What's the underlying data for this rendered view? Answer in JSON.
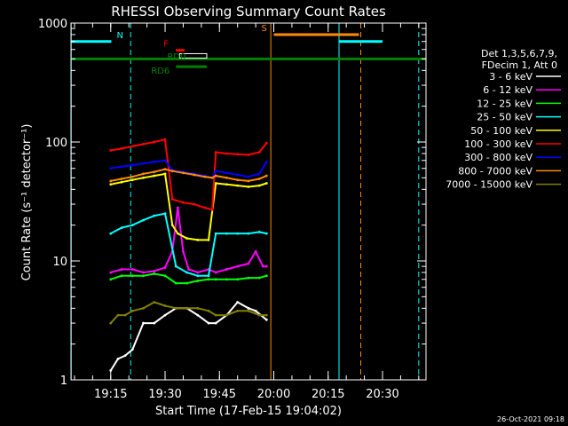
{
  "chart_data": {
    "type": "line",
    "title": "RHESSI Observing Summary Count Rates",
    "xlabel": "Start Time (17-Feb-15 19:04:02)",
    "ylabel": "Count Rate (s⁻¹ detector⁻¹)",
    "y_scale": "log",
    "ylim": [
      1,
      1000
    ],
    "xlim": [
      "19:04:02",
      "20:42:00"
    ],
    "x_ticks": [
      "19:15",
      "19:30",
      "19:45",
      "20:00",
      "20:15",
      "20:30"
    ],
    "y_ticks": [
      "1",
      "10",
      "100",
      "1000"
    ],
    "grid": false,
    "legend_position": "right",
    "legend_header": [
      "Det 1,3,5,6,7,9,",
      "FDecim 1, Att 0"
    ],
    "series": [
      {
        "name": "3 - 6 keV",
        "color": "#ffffff",
        "points": [
          [
            "19:15:00",
            1.2
          ],
          [
            "19:17:00",
            1.5
          ],
          [
            "19:19:00",
            1.6
          ],
          [
            "19:21:00",
            1.8
          ],
          [
            "19:24:00",
            3
          ],
          [
            "19:27:00",
            3
          ],
          [
            "19:30:00",
            3.5
          ],
          [
            "19:33:00",
            4
          ],
          [
            "19:36:00",
            4
          ],
          [
            "19:39:00",
            3.5
          ],
          [
            "19:42:00",
            3
          ],
          [
            "19:44:00",
            3
          ],
          [
            "19:47:00",
            3.5
          ],
          [
            "19:50:00",
            4.5
          ],
          [
            "19:53:00",
            4
          ],
          [
            "19:55:00",
            3.8
          ],
          [
            "19:58:00",
            3.2
          ]
        ]
      },
      {
        "name": "6 - 12 keV",
        "color": "#ff00ff",
        "points": [
          [
            "19:15:00",
            8
          ],
          [
            "19:18:00",
            8.5
          ],
          [
            "19:21:00",
            8.5
          ],
          [
            "19:24:00",
            8
          ],
          [
            "19:27:00",
            8.2
          ],
          [
            "19:30:00",
            8.8
          ],
          [
            "19:32:00",
            12
          ],
          [
            "19:33:30",
            28
          ],
          [
            "19:35:00",
            12
          ],
          [
            "19:36:30",
            8.5
          ],
          [
            "19:39:00",
            8
          ],
          [
            "19:42:00",
            8.5
          ],
          [
            "19:44:00",
            8
          ],
          [
            "19:47:00",
            8.5
          ],
          [
            "19:50:00",
            9
          ],
          [
            "19:53:00",
            9.5
          ],
          [
            "19:55:00",
            12
          ],
          [
            "19:57:00",
            9
          ],
          [
            "19:58:00",
            9
          ]
        ]
      },
      {
        "name": "12 - 25 keV",
        "color": "#00ff00",
        "points": [
          [
            "19:15:00",
            7
          ],
          [
            "19:18:00",
            7.5
          ],
          [
            "19:21:00",
            7.5
          ],
          [
            "19:24:00",
            7.5
          ],
          [
            "19:27:00",
            7.8
          ],
          [
            "19:30:00",
            7.5
          ],
          [
            "19:33:00",
            6.5
          ],
          [
            "19:36:00",
            6.5
          ],
          [
            "19:39:00",
            6.8
          ],
          [
            "19:42:00",
            7
          ],
          [
            "19:44:00",
            7
          ],
          [
            "19:47:00",
            7
          ],
          [
            "19:50:00",
            7
          ],
          [
            "19:53:00",
            7.2
          ],
          [
            "19:56:00",
            7.2
          ],
          [
            "19:58:00",
            7.5
          ]
        ]
      },
      {
        "name": "25 - 50 keV",
        "color": "#00ffff",
        "points": [
          [
            "19:15:00",
            17
          ],
          [
            "19:18:00",
            19
          ],
          [
            "19:21:00",
            20
          ],
          [
            "19:24:00",
            22
          ],
          [
            "19:27:00",
            24
          ],
          [
            "19:30:00",
            25
          ],
          [
            "19:33:00",
            9
          ],
          [
            "19:36:00",
            8
          ],
          [
            "19:39:00",
            7.5
          ],
          [
            "19:42:00",
            7.5
          ],
          [
            "19:44:00",
            17
          ],
          [
            "19:47:00",
            17
          ],
          [
            "19:50:00",
            17
          ],
          [
            "19:53:00",
            17
          ],
          [
            "19:56:00",
            17.5
          ],
          [
            "19:58:00",
            17
          ]
        ]
      },
      {
        "name": "50 - 100 keV",
        "color": "#ffff00",
        "points": [
          [
            "19:15:00",
            44
          ],
          [
            "19:18:00",
            46
          ],
          [
            "19:21:00",
            48
          ],
          [
            "19:24:00",
            50
          ],
          [
            "19:27:00",
            52
          ],
          [
            "19:30:00",
            54
          ],
          [
            "19:32:00",
            20
          ],
          [
            "19:33:30",
            17
          ],
          [
            "19:36:00",
            15.5
          ],
          [
            "19:39:00",
            15
          ],
          [
            "19:42:00",
            15
          ],
          [
            "19:44:00",
            45
          ],
          [
            "19:47:00",
            44
          ],
          [
            "19:50:00",
            43
          ],
          [
            "19:53:00",
            42
          ],
          [
            "19:56:00",
            43
          ],
          [
            "19:58:00",
            45
          ]
        ]
      },
      {
        "name": "100 - 300 keV",
        "color": "#ff0000",
        "points": [
          [
            "19:15:00",
            85
          ],
          [
            "19:18:00",
            88
          ],
          [
            "19:21:00",
            92
          ],
          [
            "19:24:00",
            96
          ],
          [
            "19:27:00",
            100
          ],
          [
            "19:30:00",
            105
          ],
          [
            "19:32:00",
            33
          ],
          [
            "19:35:00",
            31
          ],
          [
            "19:38:00",
            30
          ],
          [
            "19:41:00",
            28
          ],
          [
            "19:43:00",
            27
          ],
          [
            "19:44:00",
            82
          ],
          [
            "19:47:00",
            80
          ],
          [
            "19:50:00",
            79
          ],
          [
            "19:53:00",
            78
          ],
          [
            "19:56:00",
            82
          ],
          [
            "19:58:00",
            98
          ]
        ]
      },
      {
        "name": "300 - 800 keV",
        "color": "#0000ff",
        "points": [
          [
            "19:15:00",
            60
          ],
          [
            "19:18:00",
            62
          ],
          [
            "19:21:00",
            64
          ],
          [
            "19:24:00",
            66
          ],
          [
            "19:27:00",
            68
          ],
          [
            "19:30:00",
            70
          ],
          [
            "19:32:00",
            58
          ],
          [
            "19:35:00",
            56
          ],
          [
            "19:38:00",
            54
          ],
          [
            "19:41:00",
            52
          ],
          [
            "19:43:00",
            50
          ],
          [
            "19:44:00",
            57
          ],
          [
            "19:47:00",
            55
          ],
          [
            "19:50:00",
            53
          ],
          [
            "19:53:00",
            51
          ],
          [
            "19:56:00",
            54
          ],
          [
            "19:58:00",
            68
          ]
        ]
      },
      {
        "name": "800 - 7000 keV",
        "color": "#ff8c00",
        "points": [
          [
            "19:15:00",
            47
          ],
          [
            "19:18:00",
            49
          ],
          [
            "19:21:00",
            51
          ],
          [
            "19:24:00",
            54
          ],
          [
            "19:27:00",
            56
          ],
          [
            "19:30:00",
            59
          ],
          [
            "19:32:00",
            57
          ],
          [
            "19:35:00",
            55
          ],
          [
            "19:38:00",
            53
          ],
          [
            "19:41:00",
            51
          ],
          [
            "19:43:00",
            50
          ],
          [
            "19:44:00",
            52
          ],
          [
            "19:47:00",
            50
          ],
          [
            "19:50:00",
            48
          ],
          [
            "19:53:00",
            47
          ],
          [
            "19:56:00",
            49
          ],
          [
            "19:58:00",
            52
          ]
        ]
      },
      {
        "name": "7000 - 15000 keV",
        "color": "#808000",
        "points": [
          [
            "19:15:00",
            3
          ],
          [
            "19:17:00",
            3.5
          ],
          [
            "19:19:00",
            3.5
          ],
          [
            "19:21:00",
            3.8
          ],
          [
            "19:24:00",
            4
          ],
          [
            "19:27:00",
            4.5
          ],
          [
            "19:30:00",
            4.2
          ],
          [
            "19:33:00",
            4
          ],
          [
            "19:36:00",
            4
          ],
          [
            "19:39:00",
            4
          ],
          [
            "19:42:00",
            3.8
          ],
          [
            "19:44:00",
            3.5
          ],
          [
            "19:47:00",
            3.5
          ],
          [
            "19:50:00",
            3.8
          ],
          [
            "19:53:00",
            3.8
          ],
          [
            "19:56:00",
            3.5
          ],
          [
            "19:58:00",
            3.5
          ]
        ]
      }
    ],
    "attenuator_bars": [
      {
        "label": "N",
        "color": "#00ffff",
        "y": 700,
        "style": "solid",
        "segments": [
          [
            "19:04:02",
            "19:15:10"
          ],
          [
            "20:18:00",
            "20:30:00"
          ]
        ]
      },
      {
        "label": "",
        "color": "#008000",
        "y": 500,
        "style": "solid",
        "segments": [
          [
            "19:04:02",
            "20:42:00"
          ]
        ]
      },
      {
        "label": "F",
        "color": "#ff0000",
        "y": 590,
        "style": "solid",
        "segments": [
          [
            "19:33:00",
            "19:35:20"
          ]
        ]
      },
      {
        "label": "RD0",
        "color": "#ffffff",
        "y": 530,
        "style": "outline",
        "segments": [
          [
            "19:34:00",
            "19:41:30"
          ]
        ]
      },
      {
        "label": "RD6",
        "color": "#008000",
        "y": 430,
        "style": "solid",
        "segments": [
          [
            "19:33:00",
            "19:41:30"
          ]
        ]
      },
      {
        "label": "S",
        "color": "#ff8c00",
        "y": 800,
        "style": "solid",
        "segments": [
          [
            "20:00:00",
            "20:23:30"
          ]
        ]
      }
    ],
    "vertical_lines": [
      {
        "time": "19:04:05",
        "color": "#00ffff",
        "style": "solid"
      },
      {
        "time": "19:20:30",
        "color": "#00ffff",
        "style": "dashed"
      },
      {
        "time": "19:59:10",
        "color": "#ff8c00",
        "style": "solid"
      },
      {
        "time": "20:18:00",
        "color": "#00ffff",
        "style": "solid"
      },
      {
        "time": "20:24:00",
        "color": "#ff8c00",
        "style": "dashed"
      },
      {
        "time": "20:40:00",
        "color": "#00ffff",
        "style": "dashed"
      }
    ]
  },
  "footer": {
    "timestamp": "26-Oct-2021 09:18"
  }
}
